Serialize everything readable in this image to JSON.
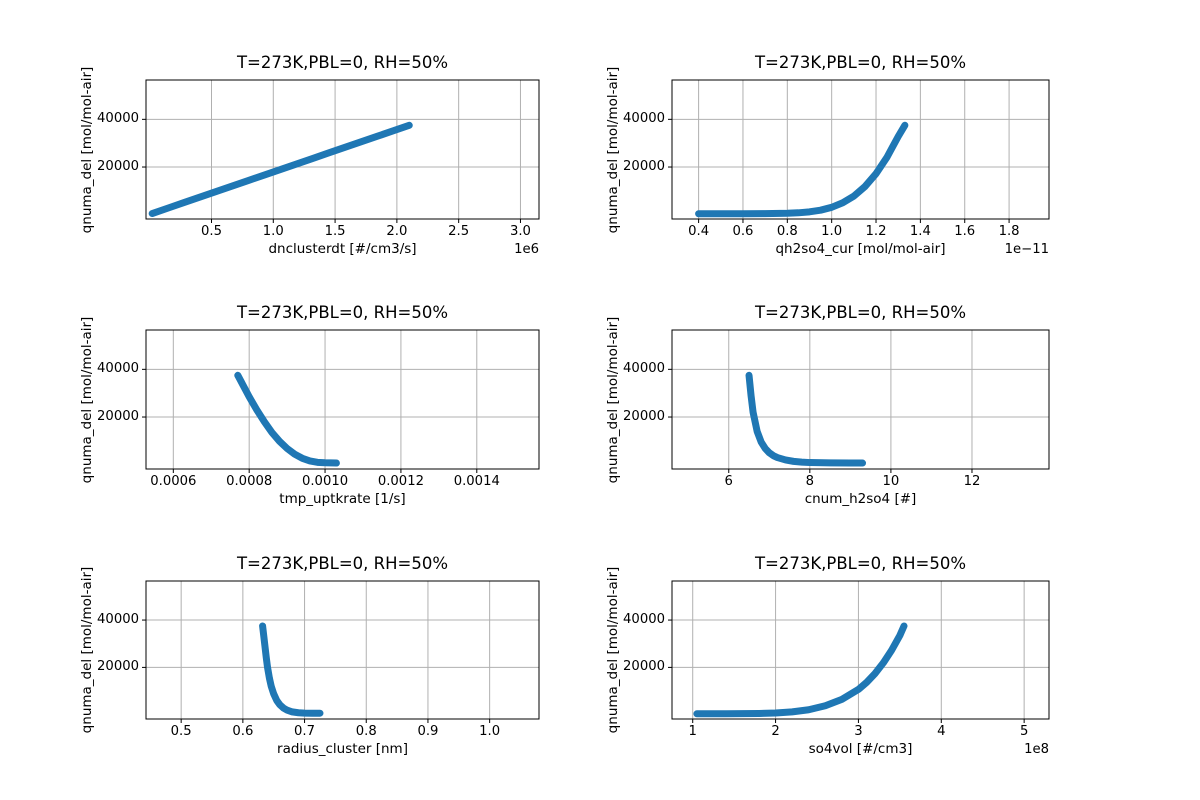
{
  "style": {
    "line_color": "#1f77b4",
    "grid_color": "#b0b0b0",
    "spine_color": "#000000",
    "text_color": "#000000",
    "background": "#ffffff"
  },
  "chart_data": [
    {
      "type": "scatter",
      "title": "T=273K,PBL=0, RH=50%",
      "xlabel": "dnclusterdt [#/cm3/s]",
      "ylabel": "qnuma_del [mol/mol-air]",
      "x_offset_label": "1e6",
      "xlim": [
        -0.03,
        3.15
      ],
      "ylim": [
        -1800,
        56500
      ],
      "grid": true,
      "x_ticks": [
        {
          "v": 0.5,
          "label": "0.5"
        },
        {
          "v": 1.0,
          "label": "1.0"
        },
        {
          "v": 1.5,
          "label": "1.5"
        },
        {
          "v": 2.0,
          "label": "2.0"
        },
        {
          "v": 2.5,
          "label": "2.5"
        },
        {
          "v": 3.0,
          "label": "3.0"
        }
      ],
      "y_ticks": [
        {
          "v": 20000,
          "label": "20000"
        },
        {
          "v": 40000,
          "label": "40000"
        }
      ],
      "points": [
        [
          0.02,
          500
        ],
        [
          0.15,
          2812
        ],
        [
          0.28,
          5125
        ],
        [
          0.41,
          7437
        ],
        [
          0.54,
          9750
        ],
        [
          0.67,
          12062
        ],
        [
          0.8,
          14375
        ],
        [
          0.93,
          16687
        ],
        [
          1.06,
          19000
        ],
        [
          1.19,
          21312
        ],
        [
          1.32,
          23625
        ],
        [
          1.45,
          25937
        ],
        [
          1.58,
          28250
        ],
        [
          1.71,
          30562
        ],
        [
          1.84,
          32875
        ],
        [
          1.97,
          35187
        ],
        [
          2.1,
          37500
        ]
      ]
    },
    {
      "type": "scatter",
      "title": "T=273K,PBL=0, RH=50%",
      "xlabel": "qh2so4_cur [mol/mol-air]",
      "ylabel": "qnuma_del [mol/mol-air]",
      "x_offset_label": "1e−11",
      "xlim": [
        0.28,
        1.98
      ],
      "ylim": [
        -1800,
        56500
      ],
      "grid": true,
      "x_ticks": [
        {
          "v": 0.4,
          "label": "0.4"
        },
        {
          "v": 0.6,
          "label": "0.6"
        },
        {
          "v": 0.8,
          "label": "0.8"
        },
        {
          "v": 1.0,
          "label": "1.0"
        },
        {
          "v": 1.2,
          "label": "1.2"
        },
        {
          "v": 1.4,
          "label": "1.4"
        },
        {
          "v": 1.6,
          "label": "1.6"
        },
        {
          "v": 1.8,
          "label": "1.8"
        }
      ],
      "y_ticks": [
        {
          "v": 20000,
          "label": "20000"
        },
        {
          "v": 40000,
          "label": "40000"
        }
      ],
      "points": [
        [
          0.4,
          400
        ],
        [
          0.5,
          400
        ],
        [
          0.6,
          420
        ],
        [
          0.7,
          460
        ],
        [
          0.8,
          600
        ],
        [
          0.85,
          800
        ],
        [
          0.9,
          1200
        ],
        [
          0.95,
          1900
        ],
        [
          1.0,
          3100
        ],
        [
          1.05,
          5000
        ],
        [
          1.1,
          7800
        ],
        [
          1.15,
          11800
        ],
        [
          1.2,
          17200
        ],
        [
          1.25,
          24200
        ],
        [
          1.3,
          32800
        ],
        [
          1.33,
          37500
        ]
      ]
    },
    {
      "type": "scatter",
      "title": "T=273K,PBL=0, RH=50%",
      "xlabel": "tmp_uptkrate [1/s]",
      "ylabel": "qnuma_del [mol/mol-air]",
      "xlim": [
        0.000528,
        0.001564
      ],
      "ylim": [
        -1800,
        56500
      ],
      "grid": true,
      "x_ticks": [
        {
          "v": 0.0006,
          "label": "0.0006"
        },
        {
          "v": 0.0008,
          "label": "0.0008"
        },
        {
          "v": 0.001,
          "label": "0.0010"
        },
        {
          "v": 0.0012,
          "label": "0.0012"
        },
        {
          "v": 0.0014,
          "label": "0.0014"
        }
      ],
      "y_ticks": [
        {
          "v": 20000,
          "label": "20000"
        },
        {
          "v": 40000,
          "label": "40000"
        }
      ],
      "points": [
        [
          0.00077,
          37500
        ],
        [
          0.00078,
          34500
        ],
        [
          0.0008,
          28500
        ],
        [
          0.00082,
          23000
        ],
        [
          0.00084,
          18000
        ],
        [
          0.00086,
          13500
        ],
        [
          0.00088,
          9800
        ],
        [
          0.0009,
          6800
        ],
        [
          0.00092,
          4400
        ],
        [
          0.00094,
          2700
        ],
        [
          0.00096,
          1600
        ],
        [
          0.00098,
          1000
        ],
        [
          0.001,
          800
        ],
        [
          0.00103,
          700
        ]
      ]
    },
    {
      "type": "scatter",
      "title": "T=273K,PBL=0, RH=50%",
      "xlabel": "cnum_h2so4 [#]",
      "ylabel": "qnuma_del [mol/mol-air]",
      "xlim": [
        4.6,
        13.9
      ],
      "ylim": [
        -1800,
        56500
      ],
      "grid": true,
      "x_ticks": [
        {
          "v": 6,
          "label": "6"
        },
        {
          "v": 8,
          "label": "8"
        },
        {
          "v": 10,
          "label": "10"
        },
        {
          "v": 12,
          "label": "12"
        }
      ],
      "y_ticks": [
        {
          "v": 20000,
          "label": "20000"
        },
        {
          "v": 40000,
          "label": "40000"
        }
      ],
      "points": [
        [
          6.5,
          37500
        ],
        [
          6.55,
          29000
        ],
        [
          6.6,
          22000
        ],
        [
          6.7,
          14000
        ],
        [
          6.8,
          9500
        ],
        [
          6.9,
          6800
        ],
        [
          7.0,
          5000
        ],
        [
          7.1,
          3800
        ],
        [
          7.2,
          3000
        ],
        [
          7.4,
          2000
        ],
        [
          7.6,
          1400
        ],
        [
          7.8,
          1100
        ],
        [
          8.0,
          900
        ],
        [
          8.5,
          750
        ],
        [
          9.0,
          700
        ],
        [
          9.3,
          700
        ]
      ]
    },
    {
      "type": "scatter",
      "title": "T=273K,PBL=0, RH=50%",
      "xlabel": "radius_cluster [nm]",
      "ylabel": "qnuma_del [mol/mol-air]",
      "xlim": [
        0.443,
        1.08
      ],
      "ylim": [
        -1800,
        56500
      ],
      "grid": true,
      "x_ticks": [
        {
          "v": 0.5,
          "label": "0.5"
        },
        {
          "v": 0.6,
          "label": "0.6"
        },
        {
          "v": 0.7,
          "label": "0.7"
        },
        {
          "v": 0.8,
          "label": "0.8"
        },
        {
          "v": 0.9,
          "label": "0.9"
        },
        {
          "v": 1.0,
          "label": "1.0"
        }
      ],
      "y_ticks": [
        {
          "v": 20000,
          "label": "20000"
        },
        {
          "v": 40000,
          "label": "40000"
        }
      ],
      "points": [
        [
          0.632,
          37500
        ],
        [
          0.634,
          33000
        ],
        [
          0.636,
          28500
        ],
        [
          0.638,
          24000
        ],
        [
          0.64,
          20000
        ],
        [
          0.643,
          15500
        ],
        [
          0.646,
          12000
        ],
        [
          0.65,
          8800
        ],
        [
          0.655,
          6000
        ],
        [
          0.66,
          4200
        ],
        [
          0.666,
          2800
        ],
        [
          0.672,
          1900
        ],
        [
          0.68,
          1200
        ],
        [
          0.69,
          850
        ],
        [
          0.7,
          700
        ],
        [
          0.712,
          650
        ],
        [
          0.725,
          650
        ]
      ]
    },
    {
      "type": "scatter",
      "title": "T=273K,PBL=0, RH=50%",
      "xlabel": "so4vol [#/cm3]",
      "ylabel": "qnuma_del [mol/mol-air]",
      "x_offset_label": "1e8",
      "xlim": [
        0.75,
        5.3
      ],
      "ylim": [
        -1800,
        56500
      ],
      "grid": true,
      "x_ticks": [
        {
          "v": 1,
          "label": "1"
        },
        {
          "v": 2,
          "label": "2"
        },
        {
          "v": 3,
          "label": "3"
        },
        {
          "v": 4,
          "label": "4"
        },
        {
          "v": 5,
          "label": "5"
        }
      ],
      "y_ticks": [
        {
          "v": 20000,
          "label": "20000"
        },
        {
          "v": 40000,
          "label": "40000"
        }
      ],
      "points": [
        [
          1.05,
          400
        ],
        [
          1.2,
          400
        ],
        [
          1.4,
          420
        ],
        [
          1.6,
          450
        ],
        [
          1.8,
          550
        ],
        [
          2.0,
          750
        ],
        [
          2.2,
          1200
        ],
        [
          2.4,
          2100
        ],
        [
          2.6,
          3800
        ],
        [
          2.8,
          6500
        ],
        [
          3.0,
          10700
        ],
        [
          3.1,
          13700
        ],
        [
          3.2,
          17400
        ],
        [
          3.3,
          21900
        ],
        [
          3.4,
          27200
        ],
        [
          3.5,
          33500
        ],
        [
          3.55,
          37500
        ]
      ]
    }
  ]
}
